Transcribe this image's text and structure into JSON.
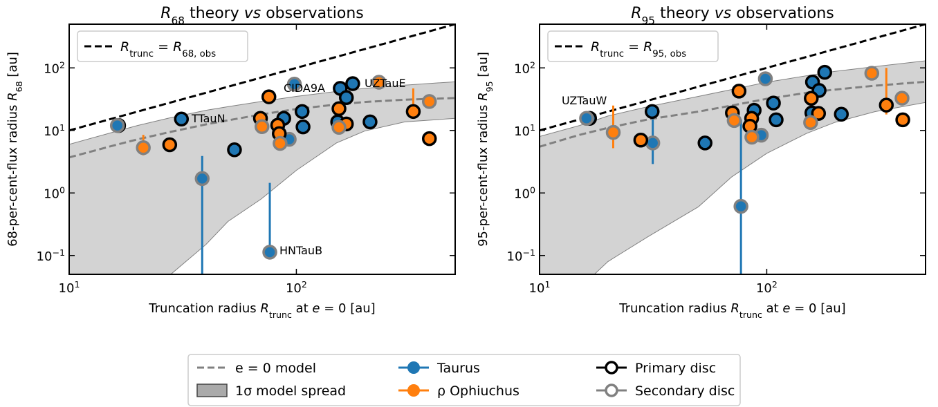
{
  "chart_data": [
    {
      "type": "scatter",
      "title": [
        "R",
        "68",
        " theory ",
        "vs",
        " observations"
      ],
      "xlabel": [
        "Truncation radius ",
        "R",
        "trunc",
        " at ",
        "e",
        " = 0 [au]"
      ],
      "ylabel": [
        "68-per-cent-flux radius ",
        "R",
        "68",
        " [au]"
      ],
      "log_x": true,
      "log_y": true,
      "xlim": [
        10,
        500
      ],
      "ylim": [
        0.05,
        500
      ],
      "xticks": [
        {
          "value": 10,
          "label": "10",
          "exponent": "1"
        },
        {
          "value": 100,
          "label": "10",
          "exponent": "2"
        }
      ],
      "yticks": [
        {
          "value": 0.1,
          "label": "10",
          "exponent": "−1"
        },
        {
          "value": 1,
          "label": "10",
          "exponent": "0"
        },
        {
          "value": 10,
          "label": "10",
          "exponent": "1"
        },
        {
          "value": 100,
          "label": "10",
          "exponent": "2"
        }
      ],
      "model": {
        "x": [
          10,
          15,
          20,
          28,
          40,
          50,
          70,
          100,
          150,
          200,
          300,
          500
        ],
        "y": [
          3.7,
          5.5,
          7.2,
          9.5,
          12.5,
          14.5,
          18,
          22,
          26,
          28.5,
          31,
          33
        ],
        "lower": [
          0.001,
          0.006,
          0.02,
          0.05,
          0.15,
          0.35,
          0.8,
          2.3,
          6.3,
          9.8,
          13.7,
          15.6
        ],
        "upper": [
          6,
          9,
          12,
          16,
          21,
          24,
          29,
          35,
          42,
          47,
          53,
          60
        ]
      },
      "truncation_line": {
        "x": [
          10,
          500
        ],
        "y": [
          10,
          500
        ]
      },
      "line_legend": [
        "R",
        "trunc",
        " = ",
        "R",
        "68, obs"
      ],
      "series": [
        {
          "color": "#1f77b4",
          "edgecolor": "#000000",
          "x": [
            16.5,
            31.2,
            53.4,
            106,
            107,
            156,
            177,
            166,
            152,
            211,
            88
          ],
          "y": [
            12.0,
            15.2,
            4.9,
            20.1,
            11.4,
            47,
            56,
            33.5,
            13.7,
            13.7,
            15.6
          ],
          "yerr_low": [
            null,
            null,
            null,
            null,
            null,
            null,
            null,
            null,
            null,
            null,
            null
          ],
          "yerr_high": [
            null,
            null,
            null,
            null,
            null,
            null,
            null,
            null,
            null,
            null,
            null
          ]
        },
        {
          "color": "#1f77b4",
          "edgecolor": "#808080",
          "x": [
            16.3,
            38.5,
            76.4,
            93,
            98
          ],
          "y": [
            12.0,
            1.7,
            0.113,
            7.2,
            55
          ],
          "yerr_low": [
            null,
            0.01,
            0.113,
            null,
            null
          ],
          "yerr_high": [
            null,
            3.9,
            1.45,
            null,
            null
          ]
        },
        {
          "color": "#ff7f0e",
          "edgecolor": "#000000",
          "x": [
            75.7,
            69.5,
            82.8,
            84.1,
            154,
            166,
            327,
            385,
            27.7
          ],
          "y": [
            34.5,
            15.6,
            12.1,
            8.9,
            22.3,
            12.7,
            20.1,
            7.4,
            5.9
          ],
          "yerr_low": [
            null,
            null,
            null,
            null,
            null,
            null,
            20.1,
            null,
            null
          ],
          "yerr_high": [
            null,
            null,
            null,
            null,
            null,
            null,
            47,
            null,
            null
          ]
        },
        {
          "color": "#ff7f0e",
          "edgecolor": "#808080",
          "x": [
            21.2,
            70.6,
            84.8,
            154,
            231,
            385
          ],
          "y": [
            5.3,
            11.5,
            6.2,
            11.2,
            59,
            29
          ],
          "yerr_low": [
            4,
            null,
            null,
            null,
            null,
            null
          ],
          "yerr_high": [
            8.5,
            null,
            null,
            null,
            null,
            null
          ]
        }
      ],
      "annotations": [
        "TTauN",
        "CIDA9A",
        "UZTauE",
        "HNTauB"
      ]
    },
    {
      "type": "scatter",
      "title": [
        "R",
        "95",
        " theory ",
        "vs",
        " observations"
      ],
      "xlabel": [
        "Truncation radius ",
        "R",
        "trunc",
        " at ",
        "e",
        " = 0 [au]"
      ],
      "ylabel": [
        "95-per-cent-flux radius ",
        "R",
        "95",
        " [au]"
      ],
      "log_x": true,
      "log_y": true,
      "xlim": [
        10,
        500
      ],
      "ylim": [
        0.05,
        500
      ],
      "xticks": [
        {
          "value": 10,
          "label": "10",
          "exponent": "1"
        },
        {
          "value": 100,
          "label": "10",
          "exponent": "2"
        }
      ],
      "yticks": [
        {
          "value": 0.1,
          "label": "10",
          "exponent": "−1"
        },
        {
          "value": 1,
          "label": "10",
          "exponent": "0"
        },
        {
          "value": 10,
          "label": "10",
          "exponent": "1"
        },
        {
          "value": 100,
          "label": "10",
          "exponent": "2"
        }
      ],
      "model": {
        "x": [
          10,
          15,
          20,
          30,
          50,
          70,
          100,
          150,
          200,
          300,
          500
        ],
        "y": [
          5.5,
          8.5,
          11,
          15,
          20,
          25,
          32,
          40,
          45,
          52,
          60
        ],
        "lower": [
          0.003,
          0.03,
          0.08,
          0.2,
          0.6,
          1.8,
          4.3,
          9,
          13.5,
          20,
          28
        ],
        "upper": [
          8,
          12,
          17,
          24,
          35,
          45,
          59,
          75,
          88,
          105,
          130
        ]
      },
      "truncation_line": {
        "x": [
          10,
          500
        ],
        "y": [
          10,
          500
        ]
      },
      "line_legend": [
        "R",
        "trunc",
        " = ",
        "R",
        "95, obs"
      ],
      "series": [
        {
          "color": "#1f77b4",
          "edgecolor": "#000000",
          "x": [
            16.6,
            31.3,
            53.5,
            88,
            107,
            110,
            159,
            180,
            170,
            158,
            213
          ],
          "y": [
            15.6,
            20.1,
            6.3,
            21,
            27.4,
            14.8,
            59.4,
            85,
            43.6,
            19.1,
            18.2
          ],
          "yerr_low": [
            null,
            null,
            null,
            null,
            null,
            null,
            null,
            null,
            null,
            null,
            null
          ],
          "yerr_high": [
            null,
            null,
            null,
            null,
            null,
            null,
            null,
            null,
            null,
            null,
            null
          ]
        },
        {
          "color": "#1f77b4",
          "edgecolor": "#808080",
          "x": [
            16.1,
            31.5,
            77,
            94.6,
            98.6
          ],
          "y": [
            15.6,
            6.3,
            0.61,
            8.4,
            67
          ],
          "yerr_low": [
            null,
            2.9,
            0.01,
            null,
            null
          ],
          "yerr_high": [
            null,
            15,
            15,
            null,
            null
          ]
        },
        {
          "color": "#ff7f0e",
          "edgecolor": "#000000",
          "x": [
            75.5,
            70.6,
            85.8,
            84.3,
            157,
            169,
            336,
            397,
            27.9
          ],
          "y": [
            42.5,
            19.1,
            15.6,
            11.7,
            32.6,
            18.7,
            25.4,
            14.8,
            7.0
          ],
          "yerr_low": [
            null,
            null,
            null,
            null,
            null,
            null,
            18,
            null,
            null
          ],
          "yerr_high": [
            null,
            null,
            null,
            null,
            null,
            null,
            100,
            null,
            null
          ]
        },
        {
          "color": "#ff7f0e",
          "edgecolor": "#808080",
          "x": [
            21.1,
            71.9,
            86,
            156,
            290,
            394
          ],
          "y": [
            9.3,
            14.4,
            7.8,
            13.4,
            82,
            32.8
          ],
          "yerr_low": [
            5.2,
            null,
            null,
            null,
            null,
            null
          ],
          "yerr_high": [
            25,
            null,
            null,
            null,
            null,
            null
          ]
        }
      ],
      "annotations": [
        "UZTauW"
      ]
    }
  ],
  "legend": {
    "model": "e = 0 model",
    "model_color": "#808080",
    "spread": "1σ model spread",
    "spread_color": "#aaaaaa",
    "regions": [
      {
        "name": "Taurus",
        "color": "#1f77b4"
      },
      {
        "name": "ρ Ophiuchus",
        "color": "#ff7f0e"
      }
    ],
    "discs": [
      {
        "name": "Primary disc",
        "edgecolor": "#000000"
      },
      {
        "name": "Secondary disc",
        "edgecolor": "#808080"
      }
    ]
  }
}
